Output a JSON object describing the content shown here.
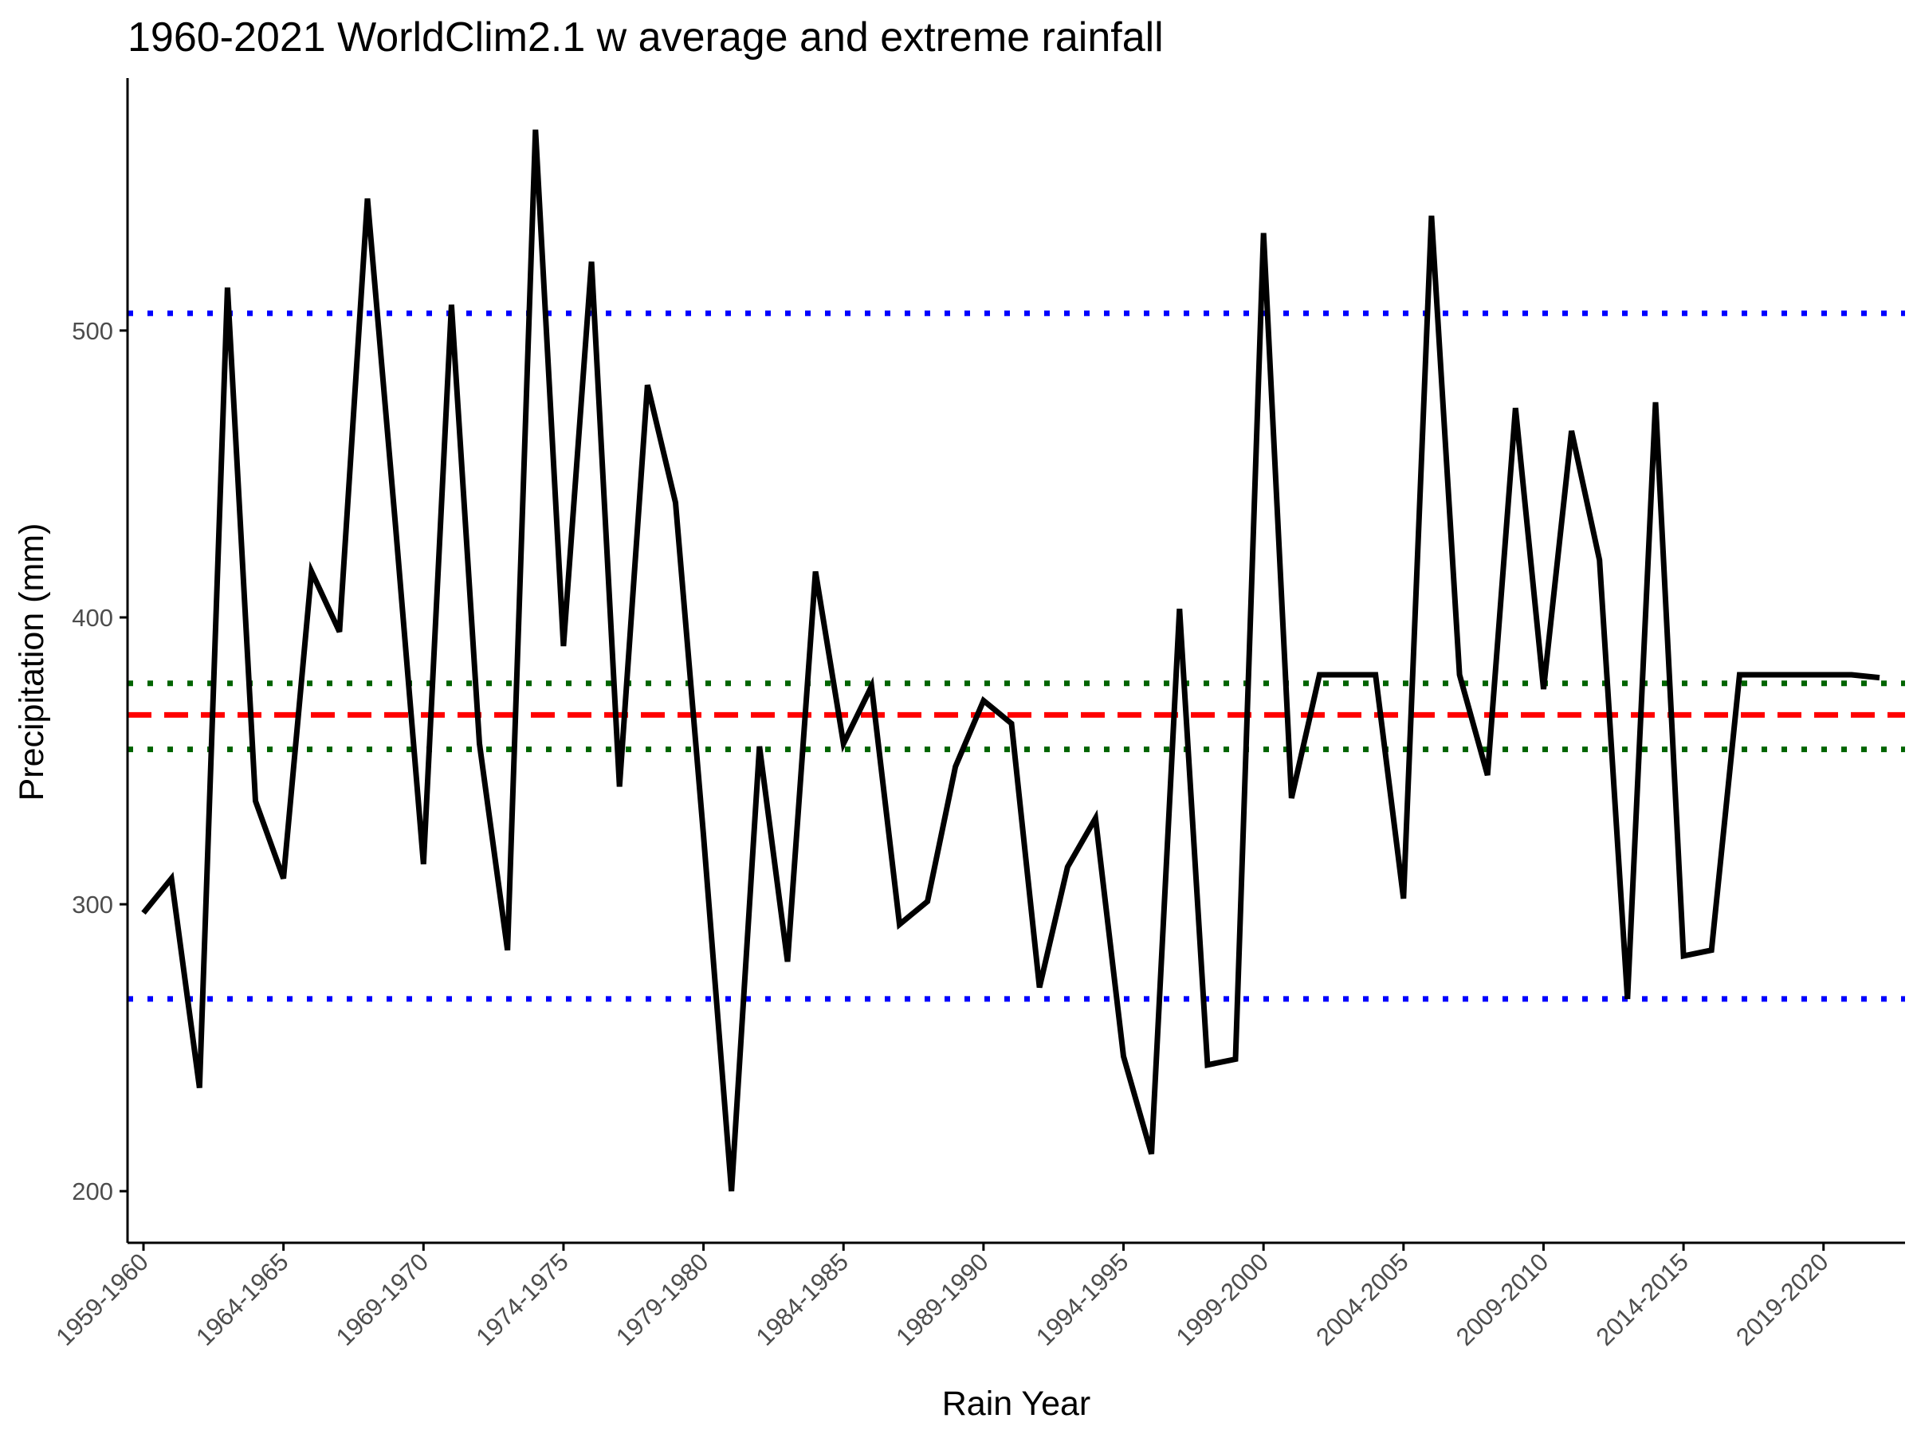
{
  "colors": {
    "series": "#000000",
    "mean": "#ff0000",
    "inner_band": "#006400",
    "outer_band": "#0000ff",
    "axis": "#000000",
    "tick_text": "#4d4d4d"
  },
  "chart_data": {
    "type": "line",
    "title": "1960-2021 WorldClim2.1 w average and extreme rainfall",
    "xlabel": "Rain Year",
    "ylabel": "Precipitation (mm)",
    "ylim": [
      182,
      588
    ],
    "yticks": [
      200,
      300,
      400,
      500
    ],
    "xtick_labels": [
      "1959-1960",
      "1964-1965",
      "1969-1970",
      "1974-1975",
      "1979-1980",
      "1984-1985",
      "1989-1990",
      "1994-1995",
      "1999-2000",
      "2004-2005",
      "2009-2010",
      "2014-2015",
      "2019-2020"
    ],
    "grid": false,
    "legend": "none",
    "series": [
      {
        "x": [
          "1959-1960",
          "1960-1961",
          "1961-1962",
          "1962-1963",
          "1963-1964",
          "1964-1965",
          "1965-1966",
          "1966-1967",
          "1967-1968",
          "1968-1969",
          "1969-1970",
          "1970-1971",
          "1971-1972",
          "1972-1973",
          "1973-1974",
          "1974-1975",
          "1975-1976",
          "1976-1977",
          "1977-1978",
          "1978-1979",
          "1979-1980",
          "1980-1981",
          "1981-1982",
          "1982-1983",
          "1983-1984",
          "1984-1985",
          "1985-1986",
          "1986-1987",
          "1987-1988",
          "1988-1989",
          "1989-1990",
          "1990-1991",
          "1991-1992",
          "1992-1993",
          "1993-1994",
          "1994-1995",
          "1995-1996",
          "1996-1997",
          "1997-1998",
          "1998-1999",
          "1999-2000",
          "2000-2001",
          "2001-2002",
          "2002-2003",
          "2003-2004",
          "2004-2005",
          "2005-2006",
          "2006-2007",
          "2007-2008",
          "2008-2009",
          "2009-2010",
          "2010-2011",
          "2011-2012",
          "2012-2013",
          "2013-2014",
          "2014-2015",
          "2015-2016",
          "2016-2017",
          "2017-2018",
          "2018-2019",
          "2019-2020",
          "2020-2021",
          "2021-2022"
        ],
        "values": [
          297,
          309,
          236,
          515,
          336,
          309,
          416,
          395,
          546,
          432,
          314,
          509,
          356,
          284,
          570,
          390,
          524,
          341,
          481,
          440,
          324,
          200,
          355,
          280,
          416,
          356,
          376,
          293,
          301,
          348,
          371,
          363,
          271,
          313,
          330,
          247,
          213,
          403,
          244,
          246,
          534,
          337,
          380,
          380,
          380,
          302,
          540,
          380,
          345,
          473,
          375,
          465,
          420,
          267,
          475,
          282,
          284,
          380,
          380,
          380,
          380,
          380,
          379
        ]
      }
    ],
    "reference_lines": [
      {
        "kind": "mean",
        "y": 366,
        "style": "dashed"
      },
      {
        "kind": "inner-band-upper",
        "y": 377,
        "style": "dotted"
      },
      {
        "kind": "inner-band-lower",
        "y": 354,
        "style": "dotted"
      },
      {
        "kind": "outer-band-upper",
        "y": 506,
        "style": "dotted"
      },
      {
        "kind": "outer-band-lower",
        "y": 267,
        "style": "dotted"
      }
    ]
  }
}
